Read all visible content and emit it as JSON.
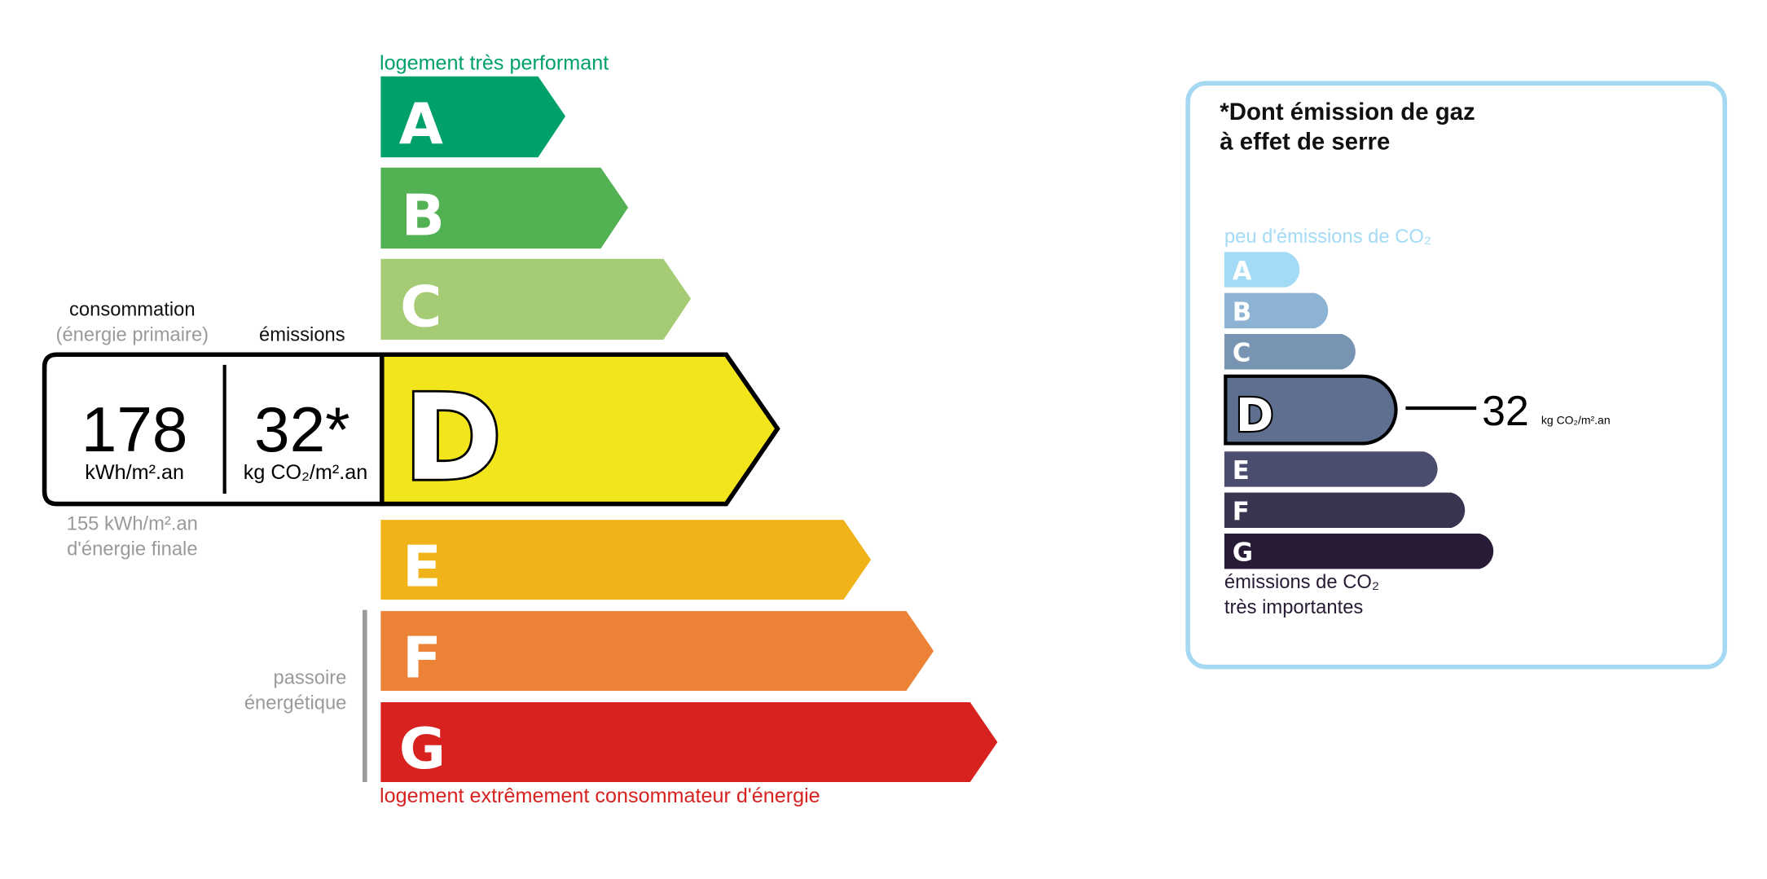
{
  "energy_label": {
    "top_caption": "logement très performant",
    "bottom_caption": "logement extrêmement consommateur d'énergie",
    "classes": [
      {
        "letter": "A",
        "color": "#00a06d"
      },
      {
        "letter": "B",
        "color": "#52b153"
      },
      {
        "letter": "C",
        "color": "#a5cc74"
      },
      {
        "letter": "D",
        "color": "#f2e51b"
      },
      {
        "letter": "E",
        "color": "#f0b41a"
      },
      {
        "letter": "F",
        "color": "#eb8235"
      },
      {
        "letter": "G",
        "color": "#d7221f"
      }
    ],
    "current_class": "D",
    "consumption_heading": "consommation",
    "consumption_subheading": "(énergie primaire)",
    "emissions_heading": "émissions",
    "consumption_value": "178",
    "consumption_unit": "kWh/m².an",
    "emissions_value": "32*",
    "emissions_unit": "kg CO₂/m².an",
    "final_energy_line1": "155 kWh/m².an",
    "final_energy_line2": "d'énergie finale",
    "passoire_line1": "passoire",
    "passoire_line2": "énergétique"
  },
  "ghg_label": {
    "title_line1": "*Dont émission de gaz",
    "title_line2": "à effet de serre",
    "top_caption": "peu d'émissions de CO₂",
    "bottom_caption_line1": "émissions de CO₂",
    "bottom_caption_line2": "très importantes",
    "classes": [
      {
        "letter": "A",
        "color": "#a3dbf7"
      },
      {
        "letter": "B",
        "color": "#8cb3d4"
      },
      {
        "letter": "C",
        "color": "#7794b2"
      },
      {
        "letter": "D",
        "color": "#5f6f8f"
      },
      {
        "letter": "E",
        "color": "#4b4d6e"
      },
      {
        "letter": "F",
        "color": "#393551"
      },
      {
        "letter": "G",
        "color": "#281b35"
      }
    ],
    "current_class": "D",
    "value": "32",
    "unit": "kg CO₂/m².an",
    "border_color": "#a5d8f2"
  }
}
